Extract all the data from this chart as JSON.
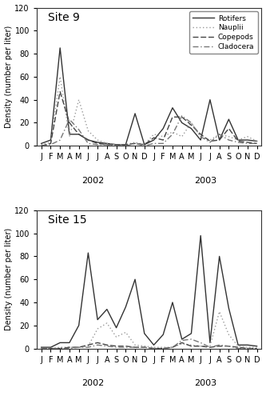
{
  "x_labels": [
    "J",
    "F",
    "M",
    "A",
    "M",
    "J",
    "J",
    "A",
    "S",
    "O",
    "N",
    "D",
    "J",
    "F",
    "M",
    "A",
    "M",
    "J",
    "J",
    "A",
    "S",
    "O",
    "N",
    "D"
  ],
  "x_year_labels": [
    [
      "2002",
      5.5
    ],
    [
      "2003",
      17.5
    ]
  ],
  "site9": {
    "title": "Site 9",
    "rotifers": [
      2,
      5,
      85,
      10,
      10,
      5,
      3,
      2,
      1,
      1,
      28,
      1,
      5,
      15,
      33,
      20,
      15,
      5,
      40,
      5,
      23,
      5,
      5,
      4
    ],
    "nauplii": [
      1,
      3,
      60,
      8,
      40,
      13,
      5,
      2,
      1,
      1,
      3,
      1,
      10,
      8,
      12,
      8,
      20,
      8,
      5,
      10,
      8,
      5,
      8,
      4
    ],
    "copepods": [
      0,
      2,
      47,
      20,
      10,
      5,
      2,
      1,
      1,
      1,
      2,
      1,
      7,
      5,
      25,
      25,
      18,
      10,
      4,
      5,
      15,
      4,
      3,
      2
    ],
    "cladocera": [
      0,
      1,
      5,
      23,
      14,
      2,
      1,
      1,
      0,
      0,
      2,
      0,
      2,
      2,
      10,
      26,
      20,
      8,
      3,
      10,
      5,
      3,
      2,
      2
    ]
  },
  "site15": {
    "title": "Site 15",
    "rotifers": [
      1,
      1,
      5,
      5,
      20,
      83,
      25,
      34,
      18,
      36,
      60,
      13,
      3,
      12,
      40,
      8,
      13,
      98,
      5,
      80,
      35,
      3,
      3,
      2
    ],
    "nauplii": [
      0,
      0,
      1,
      1,
      1,
      2,
      17,
      22,
      10,
      14,
      3,
      2,
      1,
      1,
      1,
      4,
      3,
      2,
      2,
      32,
      12,
      2,
      1,
      1
    ],
    "copepods": [
      0,
      0,
      0,
      1,
      1,
      3,
      5,
      3,
      2,
      2,
      1,
      1,
      0,
      0,
      1,
      5,
      2,
      2,
      1,
      2,
      2,
      1,
      0,
      0
    ],
    "cladocera": [
      0,
      0,
      0,
      0,
      1,
      1,
      3,
      2,
      1,
      1,
      1,
      1,
      0,
      0,
      1,
      7,
      8,
      5,
      1,
      3,
      2,
      0,
      0,
      0
    ]
  },
  "ylabel": "Density (number per liter)",
  "ylim": [
    0,
    120
  ],
  "yticks": [
    0,
    20,
    40,
    60,
    80,
    100,
    120
  ],
  "line_styles": {
    "rotifers": {
      "color": "#333333",
      "linestyle": "-",
      "linewidth": 1.0
    },
    "nauplii": {
      "color": "#999999",
      "linestyle": ":",
      "linewidth": 1.0
    },
    "copepods": {
      "color": "#444444",
      "linestyle": "--",
      "linewidth": 1.0
    },
    "cladocera": {
      "color": "#777777",
      "linestyle": "-.",
      "linewidth": 1.0
    }
  },
  "legend_labels": [
    "Rotifers",
    "Nauplii",
    "Copepods",
    "Cladocera"
  ],
  "bg_color": "#ffffff",
  "fig_bg": "#ffffff"
}
